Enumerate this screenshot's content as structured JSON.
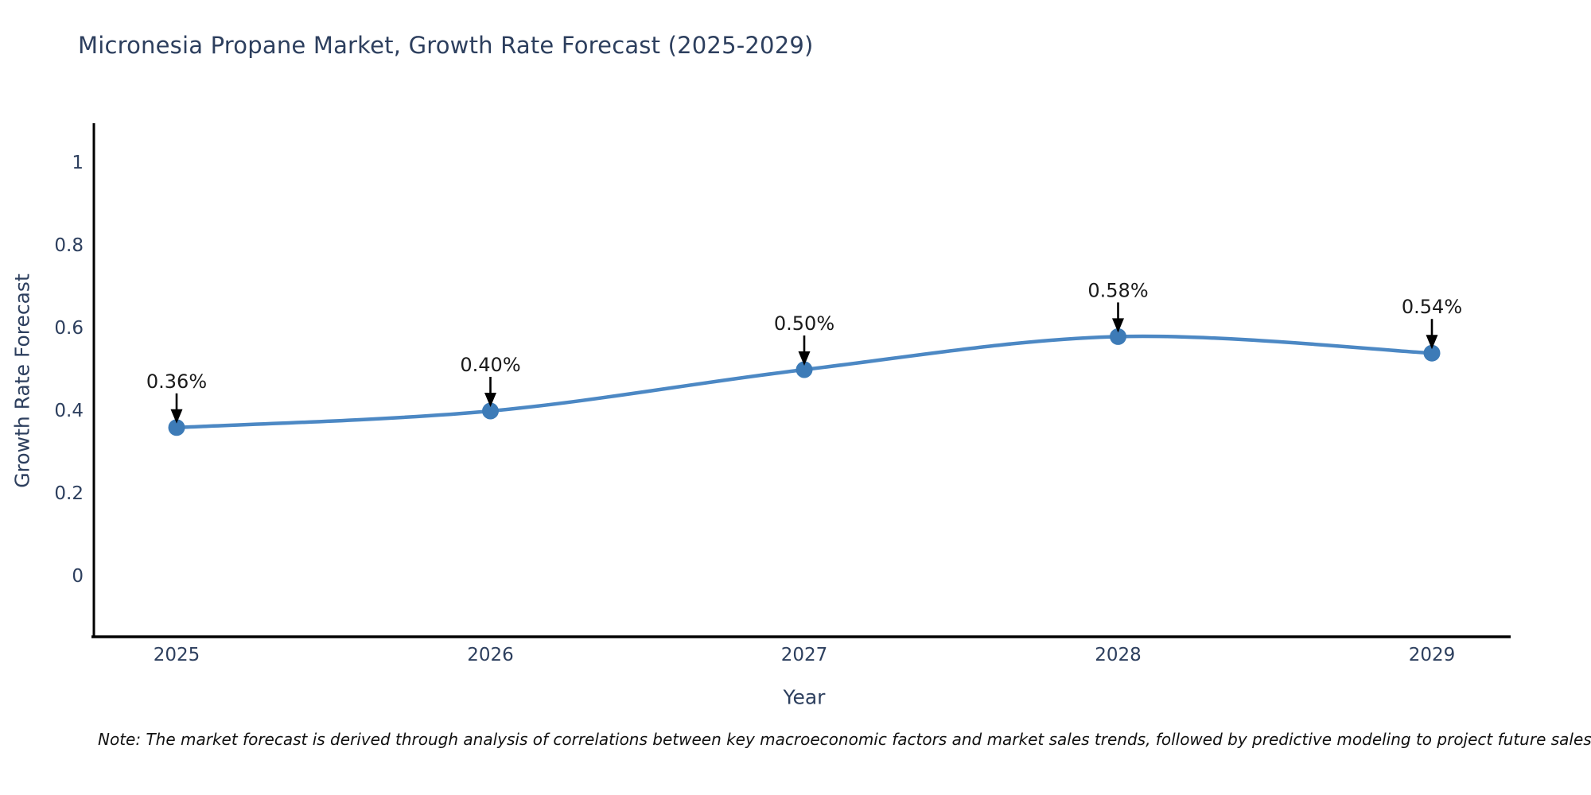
{
  "chart_data": {
    "type": "line",
    "title": "Micronesia Propane Market, Growth Rate Forecast (2025-2029)",
    "categories": [
      "2025",
      "2026",
      "2027",
      "2028",
      "2029"
    ],
    "series": [
      {
        "name": "Growth Rate Forecast",
        "values": [
          0.36,
          0.4,
          0.5,
          0.58,
          0.54
        ]
      }
    ],
    "point_labels": [
      "0.36%",
      "0.40%",
      "0.50%",
      "0.58%",
      "0.54%"
    ],
    "xlabel": "Year",
    "ylabel": "Growth Rate Forecast",
    "yticks": [
      0,
      0.2,
      0.4,
      0.6,
      0.8,
      1
    ],
    "ytick_labels": [
      "0",
      "0.2",
      "0.4",
      "0.6",
      "0.8",
      "1"
    ],
    "ylim": [
      -0.15,
      1.09
    ],
    "grid": false,
    "legend": false,
    "line_shape": "spline",
    "marker": "circle",
    "annotation_arrows": true,
    "colors": {
      "line": "#4c88c4",
      "marker": "#3d7bb7",
      "axis": "#000000",
      "tick_text": "#2d3f5e",
      "title_text": "#2d3f5e",
      "annotation_text": "#1a1a1a",
      "arrow": "#000000",
      "background": "#ffffff"
    }
  },
  "footnote": {
    "text": "Note: The market forecast is derived through analysis of correlations between key macroeconomic factors and market sales trends, followed by predictive modeling to project future sales trajectories."
  }
}
